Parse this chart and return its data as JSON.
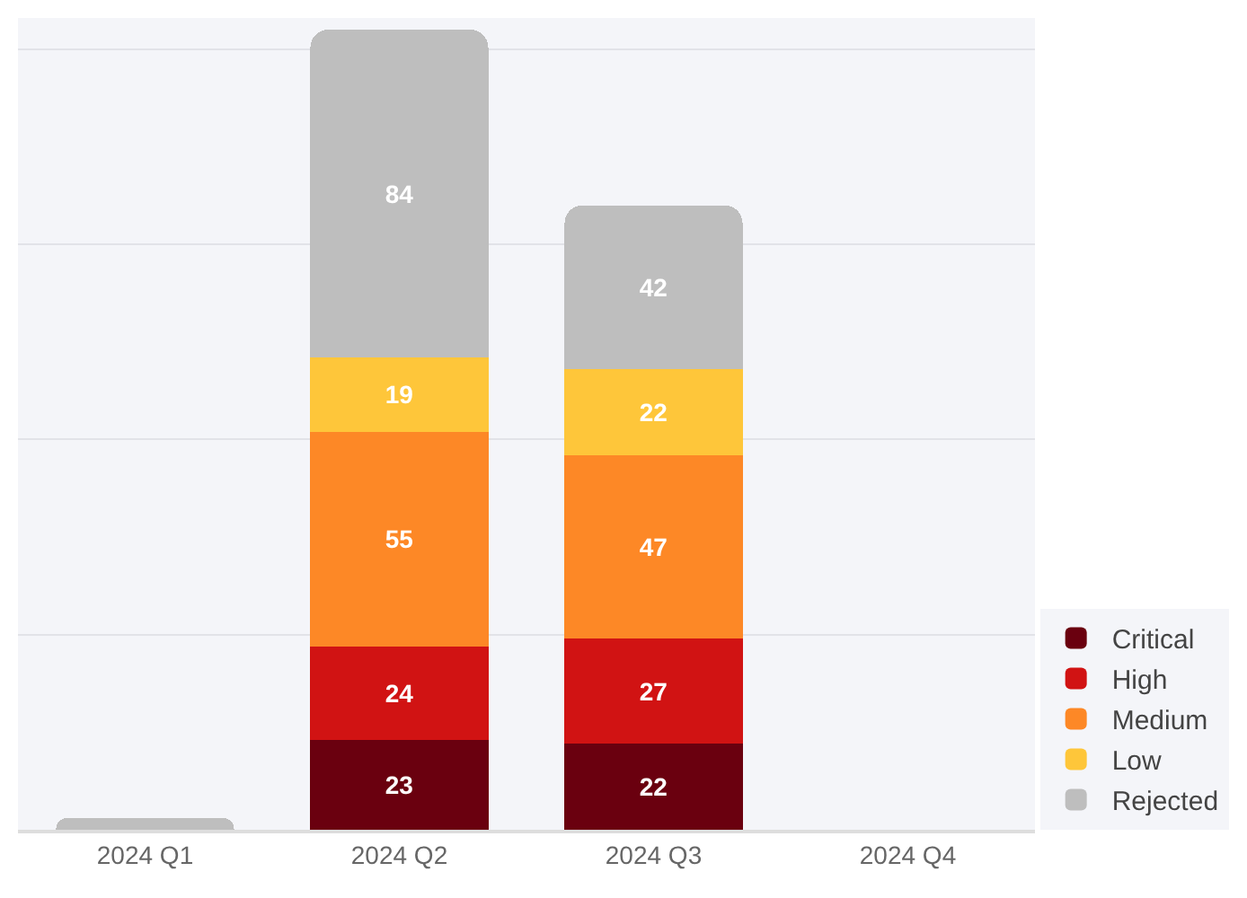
{
  "chart_data": {
    "type": "bar",
    "stacked": true,
    "categories": [
      "2024 Q1",
      "2024 Q2",
      "2024 Q3",
      "2024 Q4"
    ],
    "series": [
      {
        "name": "Critical",
        "color": "#6a000f",
        "values": [
          null,
          23,
          22,
          null
        ],
        "value_labels": [
          null,
          "23",
          "22",
          null
        ]
      },
      {
        "name": "High",
        "color": "#d11313",
        "values": [
          null,
          24,
          27,
          null
        ],
        "value_labels": [
          null,
          "24",
          "27",
          null
        ]
      },
      {
        "name": "Medium",
        "color": "#fd8826",
        "values": [
          null,
          55,
          47,
          null
        ],
        "value_labels": [
          null,
          "55",
          "47",
          null
        ]
      },
      {
        "name": "Low",
        "color": "#fec63a",
        "values": [
          null,
          19,
          22,
          null
        ],
        "value_labels": [
          null,
          "19",
          "22",
          null
        ]
      },
      {
        "name": "Rejected",
        "color": "#bebebe",
        "values": [
          3,
          84,
          42,
          null
        ],
        "value_labels": [
          null,
          "84",
          "42",
          null
        ]
      }
    ],
    "ylim": [
      0,
      208
    ],
    "yticks": [
      {
        "value": 0,
        "label": null
      },
      {
        "value": 50,
        "label": null
      },
      {
        "value": 100,
        "label": null
      },
      {
        "value": 150,
        "label": null
      },
      {
        "value": 200,
        "label": null
      }
    ],
    "grid": "y",
    "tick_labels": "x",
    "legend": "bottom right"
  }
}
